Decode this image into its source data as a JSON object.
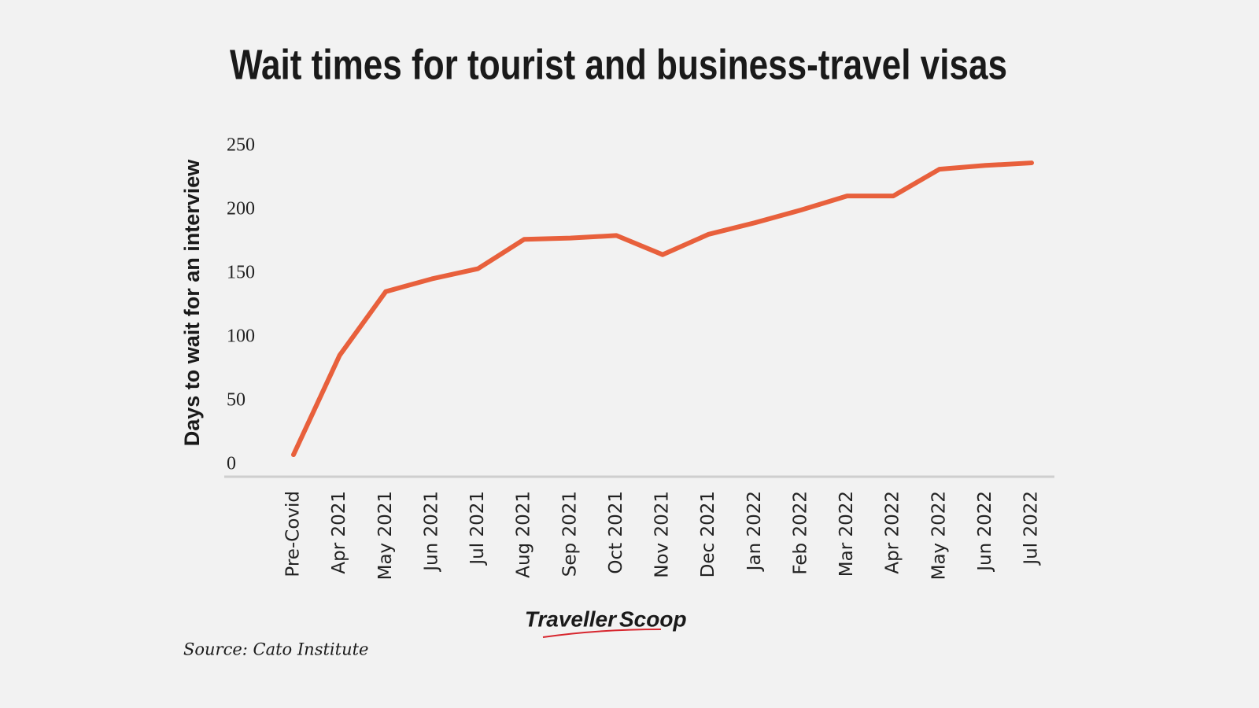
{
  "chart_data": {
    "type": "line",
    "title": "Wait times for tourist and business-travel visas",
    "y_label": "Days to wait for an interview",
    "categories": [
      "Pre-Covid",
      "Apr 2021",
      "May 2021",
      "Jun 2021",
      "Jul 2021",
      "Aug 2021",
      "Sep 2021",
      "Oct 2021",
      "Nov 2021",
      "Dec 2021",
      "Jan 2022",
      "Feb 2022",
      "Mar 2022",
      "Apr 2022",
      "May 2022",
      "Jun 2022",
      "Jul 2022"
    ],
    "values": [
      8,
      86,
      136,
      146,
      154,
      177,
      178,
      180,
      165,
      181,
      190,
      200,
      211,
      211,
      232,
      235,
      237
    ],
    "color": "#e8603c",
    "ylim": [
      0,
      250
    ],
    "yticks": [
      0,
      50,
      100,
      150,
      200,
      250
    ],
    "grid": false,
    "source": "Source: Cato Institute",
    "logo": [
      "Traveller",
      "Scoop"
    ]
  }
}
